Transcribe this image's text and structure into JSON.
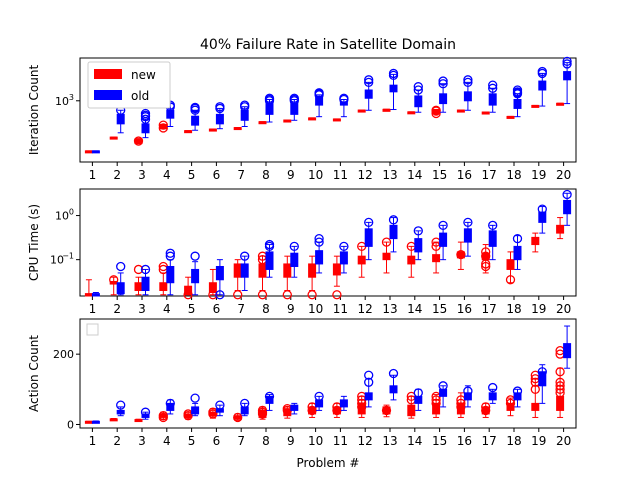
{
  "figure": {
    "title": "40% Failure Rate in Satellite Domain",
    "xlabel": "Problem #"
  },
  "colors": {
    "new": "#ff0000",
    "old": "#0000ff"
  },
  "legend": {
    "entries": [
      "new",
      "old"
    ],
    "placement": "upper-left (top panel)"
  },
  "chart_data": [
    {
      "type": "box",
      "ylabel": "Iteration Count",
      "yscale": "log",
      "ytick_label": "10^3",
      "ylim": [
        100,
        5000
      ],
      "categories": [
        1,
        2,
        3,
        4,
        5,
        6,
        7,
        8,
        9,
        10,
        11,
        12,
        13,
        14,
        15,
        16,
        17,
        18,
        19,
        20
      ],
      "series": [
        {
          "name": "new",
          "medians": [
            150,
            250,
            220,
            380,
            320,
            340,
            360,
            450,
            480,
            520,
            500,
            700,
            720,
            650,
            680,
            700,
            650,
            550,
            820,
            900
          ],
          "q1": [
            148,
            245,
            200,
            350,
            315,
            335,
            355,
            445,
            475,
            515,
            495,
            695,
            715,
            640,
            620,
            695,
            645,
            545,
            800,
            890
          ],
          "q3": [
            152,
            255,
            240,
            410,
            325,
            345,
            365,
            455,
            485,
            525,
            505,
            705,
            725,
            660,
            720,
            705,
            655,
            555,
            840,
            910
          ],
          "whisker_low": [
            148,
            245,
            200,
            350,
            315,
            335,
            355,
            445,
            475,
            515,
            495,
            695,
            715,
            640,
            620,
            695,
            645,
            545,
            800,
            890
          ],
          "whisker_high": [
            152,
            255,
            240,
            410,
            325,
            345,
            365,
            455,
            485,
            525,
            505,
            705,
            725,
            660,
            720,
            705,
            655,
            555,
            840,
            910
          ],
          "outliers": [
            [],
            [],
            [
              220
            ],
            [
              360,
              400
            ],
            [],
            [],
            [],
            [],
            [],
            [],
            [],
            [],
            [],
            [],
            [
              620,
              680,
              700
            ],
            [],
            [],
            [],
            [],
            []
          ]
        },
        {
          "name": "old",
          "medians": [
            150,
            500,
            350,
            600,
            480,
            500,
            600,
            750,
            750,
            1000,
            900,
            1300,
            1600,
            1000,
            1100,
            1200,
            1100,
            900,
            1800,
            2600
          ],
          "q1": [
            148,
            420,
            300,
            520,
            400,
            420,
            480,
            600,
            600,
            850,
            850,
            1100,
            1400,
            800,
            900,
            1000,
            850,
            750,
            1500,
            2200
          ],
          "q3": [
            152,
            600,
            420,
            700,
            560,
            600,
            700,
            900,
            900,
            1150,
            950,
            1500,
            1800,
            1200,
            1300,
            1400,
            1300,
            1050,
            2100,
            3000
          ],
          "whisker_low": [
            148,
            300,
            250,
            380,
            330,
            350,
            380,
            450,
            480,
            550,
            550,
            700,
            720,
            650,
            650,
            700,
            650,
            550,
            820,
            900
          ],
          "whisker_high": [
            152,
            700,
            500,
            900,
            700,
            750,
            800,
            1050,
            1050,
            1250,
            1050,
            2000,
            2700,
            1500,
            1900,
            2000,
            1600,
            1300,
            2800,
            4200
          ],
          "outliers": [
            [],
            [
              700
            ],
            [
              500,
              550,
              580,
              620
            ],
            [
              800,
              850
            ],
            [
              700,
              750,
              780
            ],
            [
              750,
              800
            ],
            [
              800,
              850
            ],
            [
              1000,
              1050,
              1100
            ],
            [
              1000,
              1050,
              1100
            ],
            [
              1250,
              1300,
              1350
            ],
            [
              1050,
              1100
            ],
            [
              2000,
              2200
            ],
            [
              2600,
              2800
            ],
            [
              1500,
              1700
            ],
            [
              1900,
              2100
            ],
            [
              2000,
              2200
            ],
            [
              1600,
              1800
            ],
            [
              1300,
              1350,
              1400,
              1500
            ],
            [
              2800,
              3000
            ],
            [
              4000,
              4400
            ]
          ]
        }
      ]
    },
    {
      "type": "box",
      "ylabel": "CPU Time (s)",
      "yscale": "log",
      "ytick_labels": [
        "10^-1",
        "10^0"
      ],
      "ylim": [
        0.015,
        4
      ],
      "categories": [
        1,
        2,
        3,
        4,
        5,
        6,
        7,
        8,
        9,
        10,
        11,
        12,
        13,
        14,
        15,
        16,
        17,
        18,
        19,
        20
      ],
      "series": [
        {
          "name": "new",
          "medians": [
            0.016,
            0.03,
            0.025,
            0.025,
            0.02,
            0.025,
            0.06,
            0.06,
            0.06,
            0.06,
            0.06,
            0.1,
            0.12,
            0.1,
            0.11,
            0.13,
            0.12,
            0.08,
            0.28,
            0.5
          ],
          "q1": [
            0.015,
            0.028,
            0.02,
            0.02,
            0.016,
            0.018,
            0.04,
            0.04,
            0.04,
            0.04,
            0.045,
            0.08,
            0.1,
            0.08,
            0.09,
            0.11,
            0.1,
            0.06,
            0.22,
            0.4
          ],
          "q3": [
            0.017,
            0.032,
            0.03,
            0.03,
            0.025,
            0.03,
            0.08,
            0.08,
            0.08,
            0.08,
            0.08,
            0.12,
            0.14,
            0.12,
            0.13,
            0.15,
            0.14,
            0.1,
            0.32,
            0.6
          ],
          "whisker_low": [
            0.015,
            0.016,
            0.016,
            0.016,
            0.016,
            0.016,
            0.02,
            0.02,
            0.02,
            0.02,
            0.025,
            0.04,
            0.05,
            0.04,
            0.05,
            0.06,
            0.05,
            0.03,
            0.15,
            0.3
          ],
          "whisker_high": [
            0.035,
            0.04,
            0.04,
            0.05,
            0.04,
            0.06,
            0.1,
            0.12,
            0.12,
            0.12,
            0.12,
            0.2,
            0.25,
            0.2,
            0.25,
            0.25,
            0.22,
            0.15,
            0.4,
            0.9
          ],
          "outliers": [
            [],
            [
              0.035
            ],
            [
              0.06
            ],
            [
              0.06,
              0.07
            ],
            [
              0.016
            ],
            [
              0.016
            ],
            [
              0.016
            ],
            [
              0.016,
              0.1,
              0.12
            ],
            [
              0.016
            ],
            [
              0.016
            ],
            [
              0.016
            ],
            [
              0.2
            ],
            [
              0.25
            ],
            [
              0.2
            ],
            [
              0.2,
              0.25
            ],
            [
              0.13
            ],
            [
              0.07,
              0.08,
              0.12,
              0.15
            ],
            [
              0.035
            ],
            [],
            []
          ]
        },
        {
          "name": "old",
          "medians": [
            0.016,
            0.02,
            0.03,
            0.05,
            0.04,
            0.05,
            0.06,
            0.1,
            0.1,
            0.12,
            0.12,
            0.3,
            0.45,
            0.2,
            0.3,
            0.35,
            0.3,
            0.15,
            0.9,
            1.5
          ],
          "q1": [
            0.015,
            0.017,
            0.02,
            0.03,
            0.03,
            0.035,
            0.04,
            0.06,
            0.07,
            0.08,
            0.08,
            0.2,
            0.3,
            0.15,
            0.2,
            0.25,
            0.2,
            0.1,
            0.7,
            1.1
          ],
          "q3": [
            0.017,
            0.03,
            0.04,
            0.07,
            0.06,
            0.07,
            0.08,
            0.15,
            0.14,
            0.16,
            0.15,
            0.5,
            0.6,
            0.3,
            0.4,
            0.5,
            0.45,
            0.2,
            1.2,
            2.2
          ],
          "whisker_low": [
            0.015,
            0.016,
            0.016,
            0.016,
            0.016,
            0.016,
            0.02,
            0.04,
            0.04,
            0.05,
            0.05,
            0.1,
            0.15,
            0.1,
            0.1,
            0.12,
            0.1,
            0.06,
            0.4,
            0.6
          ],
          "whisker_high": [
            0.018,
            0.05,
            0.06,
            0.1,
            0.09,
            0.1,
            0.12,
            0.22,
            0.2,
            0.25,
            0.2,
            0.7,
            0.9,
            0.45,
            0.6,
            0.7,
            0.6,
            0.35,
            1.6,
            3.2
          ],
          "outliers": [
            [],
            [
              0.07
            ],
            [
              0.06
            ],
            [
              0.12,
              0.14
            ],
            [
              0.12
            ],
            [
              0.016
            ],
            [
              0.12
            ],
            [
              0.2,
              0.22
            ],
            [
              0.2
            ],
            [
              0.25,
              0.3
            ],
            [
              0.2
            ],
            [
              0.7
            ],
            [
              0.8
            ],
            [
              0.45
            ],
            [
              0.6
            ],
            [
              0.7
            ],
            [
              0.6
            ],
            [
              0.3
            ],
            [
              1.4
            ],
            [
              3.0
            ]
          ]
        }
      ]
    },
    {
      "type": "box",
      "ylabel": "Action Count",
      "yscale": "linear",
      "yticks": [
        0,
        200
      ],
      "ylim": [
        -10,
        300
      ],
      "categories": [
        1,
        2,
        3,
        4,
        5,
        6,
        7,
        8,
        9,
        10,
        11,
        12,
        13,
        14,
        15,
        16,
        17,
        18,
        19,
        20
      ],
      "series": [
        {
          "name": "new",
          "medians": [
            8,
            15,
            12,
            25,
            25,
            30,
            20,
            30,
            35,
            40,
            40,
            45,
            40,
            40,
            45,
            45,
            40,
            50,
            50,
            60
          ],
          "q1": [
            7,
            14,
            10,
            20,
            20,
            25,
            15,
            20,
            25,
            30,
            30,
            30,
            30,
            25,
            30,
            30,
            30,
            40,
            40,
            40
          ],
          "q3": [
            9,
            16,
            14,
            30,
            30,
            35,
            25,
            40,
            45,
            50,
            50,
            60,
            50,
            55,
            60,
            60,
            50,
            60,
            60,
            80
          ],
          "whisker_low": [
            7,
            14,
            10,
            15,
            15,
            18,
            12,
            15,
            18,
            20,
            20,
            20,
            22,
            18,
            20,
            20,
            20,
            25,
            20,
            20
          ],
          "whisker_high": [
            9,
            17,
            15,
            35,
            35,
            45,
            30,
            50,
            50,
            60,
            60,
            80,
            55,
            80,
            85,
            90,
            60,
            75,
            130,
            160
          ],
          "outliers": [
            [],
            [],
            [],
            [
              20,
              25
            ],
            [
              25,
              30
            ],
            [
              30,
              35
            ],
            [
              20
            ],
            [
              30,
              35,
              40
            ],
            [
              40,
              45
            ],
            [
              40,
              50
            ],
            [
              40,
              50
            ],
            [
              50,
              60,
              70,
              80
            ],
            [
              40
            ],
            [
              70,
              80
            ],
            [
              60,
              70,
              80
            ],
            [
              50,
              60,
              70
            ],
            [
              40,
              50
            ],
            [
              60,
              70
            ],
            [
              100,
              120,
              130,
              140
            ],
            [
              90,
              100,
              110,
              120,
              150,
              200,
              210
            ]
          ]
        },
        {
          "name": "old",
          "medians": [
            8,
            35,
            25,
            50,
            40,
            40,
            40,
            70,
            50,
            60,
            60,
            80,
            100,
            70,
            90,
            80,
            80,
            80,
            130,
            210
          ],
          "q1": [
            7,
            30,
            20,
            40,
            30,
            35,
            30,
            60,
            40,
            50,
            50,
            70,
            90,
            60,
            80,
            70,
            70,
            70,
            110,
            190
          ],
          "q3": [
            9,
            40,
            30,
            60,
            50,
            45,
            50,
            80,
            55,
            70,
            70,
            90,
            110,
            80,
            100,
            90,
            90,
            90,
            150,
            230
          ],
          "whisker_low": [
            7,
            25,
            15,
            30,
            25,
            25,
            25,
            40,
            30,
            40,
            40,
            50,
            70,
            40,
            50,
            50,
            60,
            50,
            60,
            160
          ],
          "whisker_high": [
            10,
            50,
            35,
            70,
            60,
            55,
            60,
            85,
            60,
            80,
            80,
            130,
            140,
            100,
            110,
            110,
            100,
            100,
            170,
            280
          ],
          "outliers": [
            [],
            [
              55
            ],
            [
              35
            ],
            [
              60
            ],
            [
              75
            ],
            [
              55
            ],
            [
              60
            ],
            [
              80
            ],
            [],
            [
              80
            ],
            [],
            [
              120,
              140
            ],
            [
              145
            ],
            [
              90
            ],
            [
              110
            ],
            [
              95
            ],
            [
              105
            ],
            [
              95
            ],
            [
              150
            ],
            []
          ]
        }
      ]
    }
  ]
}
